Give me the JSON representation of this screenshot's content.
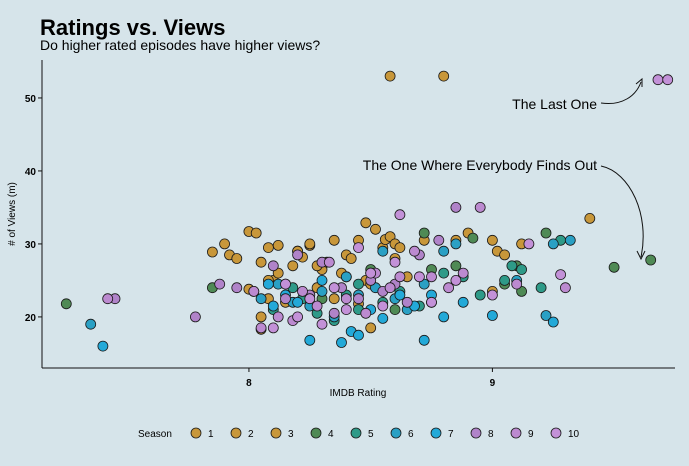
{
  "colors": {
    "background": "#d6e4ea",
    "seasons": [
      "#c8973a",
      "#c8973a",
      "#c8973a",
      "#4f8a55",
      "#2e9a88",
      "#2aa0c4",
      "#23a9d8",
      "#b083c9",
      "#bc8ad0",
      "#c391d8"
    ],
    "marker_outline": "#1a1a1a"
  },
  "chart_data": {
    "type": "scatter",
    "title": "Ratings vs. Views",
    "subtitle": "Do higher rated episodes have higher views?",
    "xlabel": "IMDB Rating",
    "ylabel": "# of Views (m)",
    "xlim": [
      7.15,
      9.75
    ],
    "ylim": [
      13.0,
      55.2
    ],
    "xticks": [
      8,
      9
    ],
    "yticks": [
      20,
      30,
      40,
      50
    ],
    "grid": false,
    "legend": {
      "title": "Season",
      "position": "bottom",
      "labels": [
        "1",
        "2",
        "3",
        "4",
        "5",
        "6",
        "7",
        "8",
        "9",
        "10"
      ]
    },
    "annotations": [
      {
        "text": "The Last One",
        "target": [
          9.7,
          52.5
        ]
      },
      {
        "text": "The One Where Everybody Finds Out",
        "target": [
          9.7,
          27.8
        ]
      }
    ],
    "series": [
      {
        "name": "1",
        "points": [
          [
            7.85,
            28.9
          ],
          [
            7.9,
            30.0
          ],
          [
            7.92,
            28.5
          ],
          [
            8.0,
            23.8
          ],
          [
            8.05,
            20.0
          ],
          [
            8.08,
            29.5
          ],
          [
            8.1,
            25.0
          ],
          [
            8.12,
            26.0
          ],
          [
            8.15,
            22.0
          ],
          [
            8.18,
            27.0
          ],
          [
            8.2,
            29.0
          ],
          [
            8.22,
            28.2
          ],
          [
            8.25,
            29.8
          ],
          [
            8.28,
            24.0
          ],
          [
            8.3,
            26.5
          ],
          [
            8.35,
            22.5
          ],
          [
            8.4,
            25.5
          ],
          [
            8.45,
            21.8
          ],
          [
            8.55,
            29.5
          ],
          [
            8.6,
            28.0
          ]
        ]
      },
      {
        "name": "2",
        "points": [
          [
            8.58,
            53.0
          ],
          [
            8.8,
            53.0
          ],
          [
            8.48,
            32.9
          ],
          [
            8.52,
            32.0
          ],
          [
            8.56,
            30.6
          ],
          [
            8.58,
            31.0
          ],
          [
            8.6,
            30.0
          ],
          [
            8.62,
            29.5
          ],
          [
            8.65,
            25.5
          ],
          [
            8.72,
            30.5
          ],
          [
            8.75,
            22.0
          ],
          [
            8.85,
            30.5
          ],
          [
            8.9,
            31.5
          ],
          [
            9.0,
            30.5
          ],
          [
            9.02,
            29.0
          ],
          [
            9.05,
            28.5
          ],
          [
            9.12,
            30.0
          ],
          [
            8.5,
            18.5
          ],
          [
            8.45,
            30.5
          ],
          [
            8.4,
            28.5
          ]
        ]
      },
      {
        "name": "3",
        "points": [
          [
            7.95,
            28.0
          ],
          [
            8.0,
            31.7
          ],
          [
            8.03,
            31.5
          ],
          [
            8.05,
            27.5
          ],
          [
            8.08,
            22.5
          ],
          [
            8.12,
            29.8
          ],
          [
            8.15,
            24.5
          ],
          [
            8.2,
            29.0
          ],
          [
            8.25,
            30.0
          ],
          [
            8.28,
            27.0
          ],
          [
            8.32,
            27.5
          ],
          [
            8.35,
            30.5
          ],
          [
            8.38,
            26.0
          ],
          [
            8.42,
            28.0
          ],
          [
            8.48,
            25.0
          ],
          [
            8.5,
            24.5
          ],
          [
            8.05,
            18.3
          ],
          [
            8.08,
            25.0
          ],
          [
            9.4,
            33.5
          ],
          [
            9.0,
            23.5
          ]
        ]
      },
      {
        "name": "4",
        "points": [
          [
            7.25,
            21.8
          ],
          [
            7.85,
            24.0
          ],
          [
            8.3,
            22.5
          ],
          [
            8.5,
            26.5
          ],
          [
            8.72,
            31.5
          ],
          [
            8.75,
            26.5
          ],
          [
            8.85,
            27.0
          ],
          [
            8.92,
            30.8
          ],
          [
            9.05,
            24.5
          ],
          [
            9.1,
            27.0
          ],
          [
            9.12,
            23.5
          ],
          [
            9.22,
            31.5
          ],
          [
            9.5,
            26.8
          ],
          [
            9.65,
            27.8
          ],
          [
            8.6,
            21.0
          ]
        ]
      },
      {
        "name": "5",
        "points": [
          [
            8.1,
            21.0
          ],
          [
            8.18,
            24.0
          ],
          [
            8.22,
            22.5
          ],
          [
            8.28,
            20.5
          ],
          [
            8.35,
            19.5
          ],
          [
            8.4,
            23.0
          ],
          [
            8.45,
            24.5
          ],
          [
            8.5,
            26.0
          ],
          [
            8.55,
            22.0
          ],
          [
            8.62,
            23.5
          ],
          [
            8.7,
            21.5
          ],
          [
            8.8,
            26.0
          ],
          [
            8.88,
            25.5
          ],
          [
            8.95,
            23.0
          ],
          [
            9.05,
            25.0
          ],
          [
            9.08,
            27.0
          ],
          [
            9.12,
            26.5
          ],
          [
            9.2,
            24.0
          ],
          [
            9.28,
            30.5
          ],
          [
            8.45,
            21.0
          ]
        ]
      },
      {
        "name": "6",
        "points": [
          [
            7.35,
            19.0
          ],
          [
            8.05,
            22.5
          ],
          [
            8.12,
            24.5
          ],
          [
            8.18,
            22.0
          ],
          [
            8.25,
            21.5
          ],
          [
            8.3,
            23.5
          ],
          [
            8.35,
            20.0
          ],
          [
            8.4,
            25.5
          ],
          [
            8.45,
            23.0
          ],
          [
            8.52,
            24.0
          ],
          [
            8.55,
            29.0
          ],
          [
            8.6,
            22.5
          ],
          [
            8.65,
            21.0
          ],
          [
            8.72,
            24.5
          ],
          [
            8.8,
            29.0
          ],
          [
            8.85,
            30.0
          ],
          [
            9.1,
            25.0
          ],
          [
            9.22,
            20.2
          ],
          [
            9.25,
            30.0
          ],
          [
            9.32,
            30.5
          ]
        ]
      },
      {
        "name": "7",
        "points": [
          [
            7.4,
            16.0
          ],
          [
            8.08,
            24.5
          ],
          [
            8.1,
            21.5
          ],
          [
            8.15,
            23.0
          ],
          [
            8.2,
            22.0
          ],
          [
            8.25,
            16.8
          ],
          [
            8.3,
            25.0
          ],
          [
            8.38,
            16.5
          ],
          [
            8.42,
            18.0
          ],
          [
            8.45,
            17.5
          ],
          [
            8.5,
            21.0
          ],
          [
            8.55,
            19.8
          ],
          [
            8.62,
            23.0
          ],
          [
            8.68,
            21.5
          ],
          [
            8.72,
            16.8
          ],
          [
            8.75,
            23.0
          ],
          [
            8.8,
            20.0
          ],
          [
            8.88,
            22.0
          ],
          [
            9.0,
            20.2
          ],
          [
            9.25,
            19.3
          ]
        ]
      },
      {
        "name": "8",
        "points": [
          [
            7.45,
            22.5
          ],
          [
            7.78,
            20.0
          ],
          [
            7.88,
            24.5
          ],
          [
            7.95,
            24.0
          ],
          [
            8.02,
            23.5
          ],
          [
            8.1,
            27.0
          ],
          [
            8.15,
            22.5
          ],
          [
            8.2,
            28.5
          ],
          [
            8.25,
            23.0
          ],
          [
            8.3,
            27.5
          ],
          [
            8.35,
            20.5
          ],
          [
            8.38,
            24.0
          ],
          [
            8.45,
            22.5
          ],
          [
            8.5,
            25.0
          ],
          [
            8.55,
            23.5
          ],
          [
            8.6,
            24.5
          ],
          [
            8.65,
            22.0
          ],
          [
            8.7,
            28.5
          ],
          [
            8.78,
            30.5
          ],
          [
            8.85,
            35.0
          ]
        ]
      },
      {
        "name": "9",
        "points": [
          [
            7.42,
            22.5
          ],
          [
            8.02,
            23.5
          ],
          [
            8.05,
            18.5
          ],
          [
            8.12,
            20.0
          ],
          [
            8.18,
            19.5
          ],
          [
            8.22,
            23.5
          ],
          [
            8.28,
            21.5
          ],
          [
            8.33,
            27.5
          ],
          [
            8.4,
            22.5
          ],
          [
            8.48,
            20.5
          ],
          [
            8.52,
            26.0
          ],
          [
            8.58,
            24.0
          ],
          [
            8.62,
            25.5
          ],
          [
            8.68,
            29.0
          ],
          [
            8.75,
            25.5
          ],
          [
            8.82,
            24.0
          ],
          [
            8.88,
            26.0
          ],
          [
            8.95,
            35.0
          ],
          [
            9.1,
            24.5
          ],
          [
            9.3,
            24.0
          ]
        ]
      },
      {
        "name": "10",
        "points": [
          [
            9.68,
            52.5
          ],
          [
            9.72,
            52.5
          ],
          [
            8.1,
            18.5
          ],
          [
            8.15,
            24.5
          ],
          [
            8.2,
            20.0
          ],
          [
            8.25,
            22.5
          ],
          [
            8.3,
            19.0
          ],
          [
            8.35,
            24.0
          ],
          [
            8.4,
            21.0
          ],
          [
            8.45,
            29.5
          ],
          [
            8.5,
            26.0
          ],
          [
            8.55,
            21.5
          ],
          [
            8.6,
            27.5
          ],
          [
            8.62,
            34.0
          ],
          [
            8.7,
            25.5
          ],
          [
            8.75,
            22.0
          ],
          [
            8.85,
            25.0
          ],
          [
            9.0,
            23.0
          ],
          [
            9.15,
            30.0
          ],
          [
            9.28,
            25.8
          ]
        ]
      }
    ]
  }
}
